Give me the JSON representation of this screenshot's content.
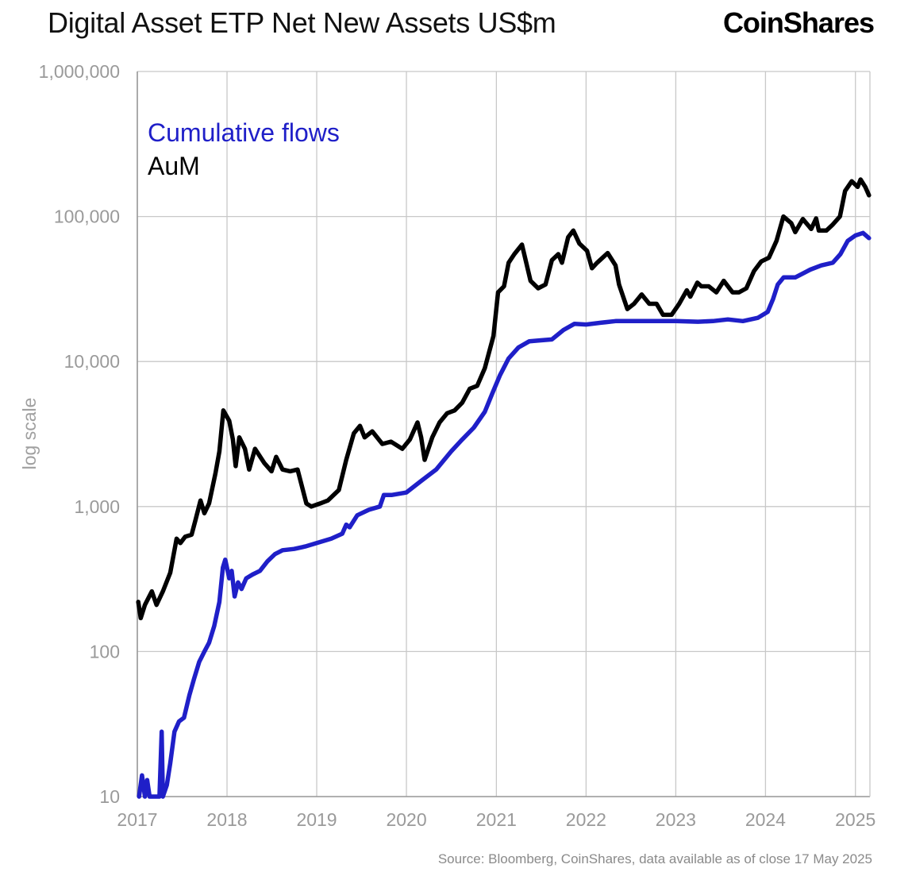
{
  "header": {
    "title": "Digital Asset ETP Net New Assets US$m",
    "logo_text": "CoinShares"
  },
  "footer": {
    "source": "Source: Bloomberg, CoinShares, data available as of close 17 May 2025"
  },
  "chart_data": {
    "type": "line",
    "title": "Digital Asset ETP Net New Assets US$m",
    "ylabel": "log scale",
    "xlabel": "",
    "yscale": "log",
    "ylim": [
      10,
      1000000
    ],
    "xlim": [
      "2017-01-01",
      "2025-03-01"
    ],
    "grid": true,
    "legend_position": "top-left",
    "y_ticks": [
      "10",
      "100",
      "1,000",
      "10,000",
      "100,000",
      "1,000,000"
    ],
    "y_tick_values": [
      10,
      100,
      1000,
      10000,
      100000,
      1000000
    ],
    "x_ticks": [
      "2017",
      "2018",
      "2019",
      "2020",
      "2021",
      "2022",
      "2023",
      "2024",
      "2025"
    ],
    "x_tick_values": [
      "2017-01-01",
      "2018-01-01",
      "2019-01-01",
      "2020-01-01",
      "2021-01-01",
      "2022-01-01",
      "2023-01-01",
      "2024-01-01",
      "2025-01-01"
    ],
    "series": [
      {
        "name": "Cumulative flows",
        "color": "#1f1fc8",
        "points": [
          [
            "2017-01-08",
            10
          ],
          [
            "2017-01-20",
            14
          ],
          [
            "2017-02-01",
            10
          ],
          [
            "2017-02-10",
            13
          ],
          [
            "2017-02-20",
            10
          ],
          [
            "2017-03-15",
            10
          ],
          [
            "2017-04-01",
            10
          ],
          [
            "2017-04-10",
            28
          ],
          [
            "2017-04-15",
            10
          ],
          [
            "2017-05-01",
            12
          ],
          [
            "2017-05-15",
            17
          ],
          [
            "2017-06-01",
            28
          ],
          [
            "2017-06-20",
            33
          ],
          [
            "2017-07-10",
            35
          ],
          [
            "2017-08-01",
            50
          ],
          [
            "2017-08-20",
            65
          ],
          [
            "2017-09-10",
            85
          ],
          [
            "2017-10-01",
            100
          ],
          [
            "2017-10-20",
            115
          ],
          [
            "2017-11-10",
            150
          ],
          [
            "2017-12-01",
            220
          ],
          [
            "2017-12-15",
            380
          ],
          [
            "2017-12-25",
            430
          ],
          [
            "2018-01-10",
            320
          ],
          [
            "2018-01-20",
            360
          ],
          [
            "2018-02-01",
            240
          ],
          [
            "2018-02-15",
            300
          ],
          [
            "2018-03-01",
            270
          ],
          [
            "2018-03-20",
            320
          ],
          [
            "2018-04-15",
            340
          ],
          [
            "2018-05-15",
            360
          ],
          [
            "2018-06-15",
            420
          ],
          [
            "2018-07-15",
            470
          ],
          [
            "2018-08-15",
            500
          ],
          [
            "2018-10-01",
            510
          ],
          [
            "2018-11-15",
            530
          ],
          [
            "2019-01-01",
            560
          ],
          [
            "2019-03-01",
            600
          ],
          [
            "2019-04-15",
            650
          ],
          [
            "2019-05-01",
            750
          ],
          [
            "2019-05-15",
            720
          ],
          [
            "2019-06-15",
            870
          ],
          [
            "2019-08-01",
            950
          ],
          [
            "2019-09-15",
            1000
          ],
          [
            "2019-10-01",
            1200
          ],
          [
            "2019-11-01",
            1200
          ],
          [
            "2020-01-01",
            1250
          ],
          [
            "2020-03-01",
            1500
          ],
          [
            "2020-05-01",
            1800
          ],
          [
            "2020-07-01",
            2400
          ],
          [
            "2020-08-15",
            2900
          ],
          [
            "2020-10-01",
            3500
          ],
          [
            "2020-11-15",
            4500
          ],
          [
            "2020-12-15",
            6000
          ],
          [
            "2021-01-15",
            8000
          ],
          [
            "2021-02-20",
            10500
          ],
          [
            "2021-04-01",
            12500
          ],
          [
            "2021-05-15",
            13800
          ],
          [
            "2021-07-01",
            14000
          ],
          [
            "2021-08-15",
            14200
          ],
          [
            "2021-10-01",
            16500
          ],
          [
            "2021-11-15",
            18200
          ],
          [
            "2022-01-01",
            18000
          ],
          [
            "2022-03-01",
            18500
          ],
          [
            "2022-05-01",
            19000
          ],
          [
            "2022-07-01",
            19000
          ],
          [
            "2022-10-01",
            19000
          ],
          [
            "2023-01-01",
            19000
          ],
          [
            "2023-04-01",
            18800
          ],
          [
            "2023-06-01",
            19000
          ],
          [
            "2023-08-01",
            19500
          ],
          [
            "2023-10-01",
            19000
          ],
          [
            "2023-12-01",
            20000
          ],
          [
            "2024-01-10",
            22000
          ],
          [
            "2024-02-01",
            27000
          ],
          [
            "2024-02-20",
            34000
          ],
          [
            "2024-03-15",
            38000
          ],
          [
            "2024-05-01",
            38000
          ],
          [
            "2024-07-01",
            43000
          ],
          [
            "2024-08-15",
            46000
          ],
          [
            "2024-10-01",
            48000
          ],
          [
            "2024-11-01",
            55000
          ],
          [
            "2024-12-01",
            68000
          ],
          [
            "2025-01-01",
            74000
          ],
          [
            "2025-02-01",
            77000
          ],
          [
            "2025-02-25",
            71000
          ]
        ]
      },
      {
        "name": "AuM",
        "color": "#000000",
        "points": [
          [
            "2017-01-05",
            220
          ],
          [
            "2017-01-15",
            170
          ],
          [
            "2017-02-01",
            210
          ],
          [
            "2017-03-01",
            260
          ],
          [
            "2017-03-20",
            210
          ],
          [
            "2017-04-15",
            260
          ],
          [
            "2017-05-15",
            350
          ],
          [
            "2017-06-10",
            600
          ],
          [
            "2017-06-25",
            560
          ],
          [
            "2017-07-15",
            620
          ],
          [
            "2017-08-10",
            640
          ],
          [
            "2017-08-25",
            800
          ],
          [
            "2017-09-15",
            1100
          ],
          [
            "2017-10-01",
            900
          ],
          [
            "2017-10-20",
            1050
          ],
          [
            "2017-11-15",
            1700
          ],
          [
            "2017-12-01",
            2400
          ],
          [
            "2017-12-17",
            4600
          ],
          [
            "2018-01-10",
            3900
          ],
          [
            "2018-01-25",
            2900
          ],
          [
            "2018-02-05",
            1900
          ],
          [
            "2018-02-20",
            3000
          ],
          [
            "2018-03-15",
            2500
          ],
          [
            "2018-04-01",
            1800
          ],
          [
            "2018-04-25",
            2500
          ],
          [
            "2018-06-01",
            2000
          ],
          [
            "2018-07-01",
            1750
          ],
          [
            "2018-07-20",
            2200
          ],
          [
            "2018-08-15",
            1800
          ],
          [
            "2018-09-15",
            1750
          ],
          [
            "2018-10-15",
            1800
          ],
          [
            "2018-11-20",
            1050
          ],
          [
            "2018-12-10",
            1000
          ],
          [
            "2019-01-15",
            1050
          ],
          [
            "2019-02-15",
            1100
          ],
          [
            "2019-04-01",
            1300
          ],
          [
            "2019-05-01",
            2100
          ],
          [
            "2019-06-01",
            3200
          ],
          [
            "2019-06-26",
            3600
          ],
          [
            "2019-07-15",
            3000
          ],
          [
            "2019-08-15",
            3300
          ],
          [
            "2019-09-25",
            2700
          ],
          [
            "2019-10-30",
            2800
          ],
          [
            "2019-12-15",
            2500
          ],
          [
            "2020-01-15",
            2900
          ],
          [
            "2020-02-15",
            3800
          ],
          [
            "2020-03-01",
            3000
          ],
          [
            "2020-03-15",
            2100
          ],
          [
            "2020-04-15",
            3000
          ],
          [
            "2020-05-15",
            3800
          ],
          [
            "2020-06-15",
            4400
          ],
          [
            "2020-07-15",
            4600
          ],
          [
            "2020-08-15",
            5200
          ],
          [
            "2020-09-15",
            6500
          ],
          [
            "2020-10-15",
            6800
          ],
          [
            "2020-11-15",
            9000
          ],
          [
            "2020-12-20",
            15000
          ],
          [
            "2021-01-08",
            30000
          ],
          [
            "2021-02-01",
            33000
          ],
          [
            "2021-02-20",
            48000
          ],
          [
            "2021-03-15",
            55000
          ],
          [
            "2021-04-15",
            64000
          ],
          [
            "2021-05-20",
            36000
          ],
          [
            "2021-06-20",
            32000
          ],
          [
            "2021-07-20",
            34000
          ],
          [
            "2021-08-15",
            50000
          ],
          [
            "2021-09-10",
            55000
          ],
          [
            "2021-09-25",
            48000
          ],
          [
            "2021-10-20",
            72000
          ],
          [
            "2021-11-10",
            80000
          ],
          [
            "2021-12-05",
            65000
          ],
          [
            "2022-01-05",
            58000
          ],
          [
            "2022-01-25",
            44000
          ],
          [
            "2022-02-15",
            48000
          ],
          [
            "2022-03-30",
            56000
          ],
          [
            "2022-05-01",
            46000
          ],
          [
            "2022-05-15",
            34000
          ],
          [
            "2022-06-18",
            23000
          ],
          [
            "2022-07-15",
            25000
          ],
          [
            "2022-08-15",
            29000
          ],
          [
            "2022-09-15",
            25000
          ],
          [
            "2022-10-15",
            25000
          ],
          [
            "2022-11-10",
            21000
          ],
          [
            "2022-12-15",
            21000
          ],
          [
            "2023-01-15",
            25000
          ],
          [
            "2023-02-15",
            31000
          ],
          [
            "2023-03-01",
            28000
          ],
          [
            "2023-03-30",
            35000
          ],
          [
            "2023-04-15",
            33000
          ],
          [
            "2023-05-15",
            33000
          ],
          [
            "2023-06-15",
            30000
          ],
          [
            "2023-07-15",
            36000
          ],
          [
            "2023-08-20",
            30000
          ],
          [
            "2023-09-15",
            30000
          ],
          [
            "2023-10-15",
            32000
          ],
          [
            "2023-11-15",
            42000
          ],
          [
            "2023-12-15",
            49000
          ],
          [
            "2024-01-15",
            52000
          ],
          [
            "2024-02-15",
            68000
          ],
          [
            "2024-03-14",
            100000
          ],
          [
            "2024-04-15",
            90000
          ],
          [
            "2024-05-01",
            78000
          ],
          [
            "2024-06-01",
            96000
          ],
          [
            "2024-07-05",
            82000
          ],
          [
            "2024-07-25",
            97000
          ],
          [
            "2024-08-05",
            80000
          ],
          [
            "2024-09-05",
            80000
          ],
          [
            "2024-10-01",
            88000
          ],
          [
            "2024-10-30",
            100000
          ],
          [
            "2024-11-20",
            150000
          ],
          [
            "2024-12-17",
            175000
          ],
          [
            "2025-01-10",
            160000
          ],
          [
            "2025-01-22",
            180000
          ],
          [
            "2025-02-10",
            160000
          ],
          [
            "2025-02-25",
            140000
          ]
        ]
      }
    ]
  }
}
